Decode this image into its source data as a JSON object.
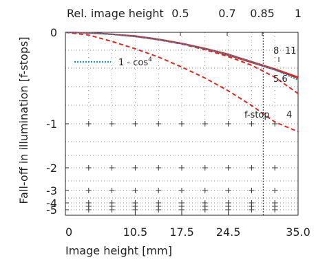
{
  "chart_data": {
    "type": "line",
    "xlabel": "Image height [mm]",
    "ylabel": "Fall-off in illumination [f-stops]",
    "top_axis_label": "Rel. image height",
    "xlim": [
      0,
      35.0
    ],
    "ylim": [
      -5,
      0
    ],
    "x_ticks": [
      {
        "value": 0,
        "label": "0"
      },
      {
        "value": 10.5,
        "label": "10.5"
      },
      {
        "value": 17.5,
        "label": "17.5"
      },
      {
        "value": 24.5,
        "label": "24.5"
      },
      {
        "value": 35.0,
        "label": "35.0"
      }
    ],
    "top_ticks": [
      {
        "value": 0.5,
        "label": "0.5"
      },
      {
        "value": 0.7,
        "label": "0.7"
      },
      {
        "value": 0.85,
        "label": "0.85"
      },
      {
        "value": 1.0,
        "label": "1"
      }
    ],
    "y_ticks": [
      {
        "value": 0,
        "label": "0"
      },
      {
        "value": -1,
        "label": "-1"
      },
      {
        "value": -2,
        "label": "-2"
      },
      {
        "value": -3,
        "label": "-3"
      },
      {
        "value": -4,
        "label": "-4"
      },
      {
        "value": -5,
        "label": "-5"
      }
    ],
    "vertical_marker_x": 29.75,
    "grid": true,
    "legend_text": "1 - cos",
    "legend_superscript": "4",
    "curve_labels": {
      "f8": "8",
      "f11": "11",
      "f56": "5.6",
      "f4": "4",
      "fstop": "f-stop"
    },
    "colors": {
      "solid_series": "#e0251e",
      "dashed_series": "#e0251e",
      "cos4": "#1a8fc9",
      "grid": "#555555",
      "axis": "#222222"
    },
    "series": [
      {
        "name": "8",
        "style": "solid",
        "x": [
          0,
          3.5,
          7,
          10.5,
          14,
          17.5,
          21,
          24.5,
          28,
          31.5,
          35
        ],
        "y": [
          0,
          -0.006,
          -0.02,
          -0.04,
          -0.075,
          -0.12,
          -0.175,
          -0.24,
          -0.32,
          -0.4,
          -0.49
        ]
      },
      {
        "name": "11",
        "style": "solid",
        "x": [
          0,
          3.5,
          7,
          10.5,
          14,
          17.5,
          21,
          24.5,
          28,
          31.5,
          35
        ],
        "y": [
          0,
          -0.006,
          -0.022,
          -0.045,
          -0.08,
          -0.125,
          -0.18,
          -0.25,
          -0.33,
          -0.41,
          -0.5
        ]
      },
      {
        "name": "5.6",
        "style": "dashed",
        "x": [
          0,
          3.5,
          7,
          10.5,
          14,
          17.5,
          21,
          24.5,
          28,
          31.5,
          35
        ],
        "y": [
          0,
          -0.006,
          -0.022,
          -0.046,
          -0.082,
          -0.128,
          -0.19,
          -0.265,
          -0.36,
          -0.49,
          -0.67
        ]
      },
      {
        "name": "4",
        "style": "dashed",
        "x": [
          0,
          3.5,
          7,
          10.5,
          14,
          17.5,
          21,
          24.5,
          28,
          31.5,
          35
        ],
        "y": [
          0,
          -0.03,
          -0.1,
          -0.18,
          -0.27,
          -0.38,
          -0.5,
          -0.64,
          -0.8,
          -0.98,
          -1.18
        ]
      },
      {
        "name": "1 - cos4",
        "style": "dotted",
        "x": [
          0,
          3.5,
          7,
          10.5,
          14,
          17.5,
          21,
          24.5,
          28,
          31.5,
          35
        ],
        "y": [
          0,
          -0.006,
          -0.02,
          -0.045,
          -0.08,
          -0.125,
          -0.18,
          -0.245,
          -0.32,
          -0.41,
          -0.52
        ]
      }
    ]
  }
}
